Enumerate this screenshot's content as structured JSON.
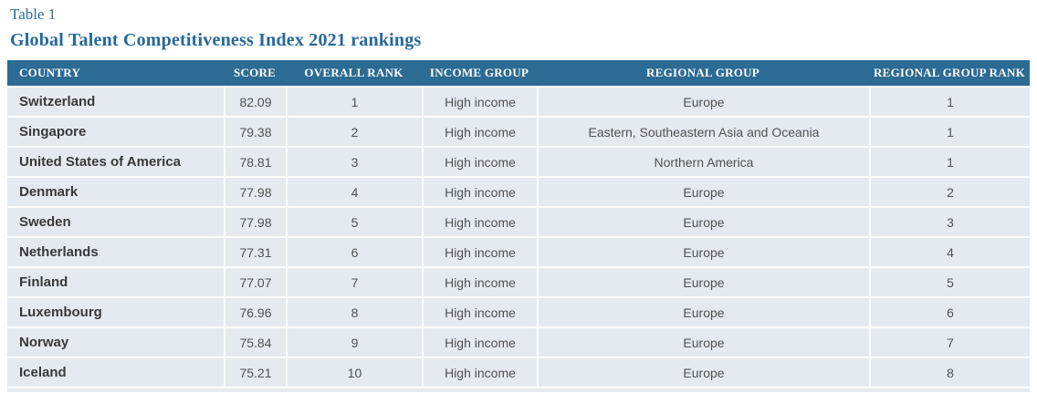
{
  "page": {
    "table_number": "Table 1",
    "title": "Global Talent Competitiveness Index 2021 rankings"
  },
  "table": {
    "columns": [
      "COUNTRY",
      "SCORE",
      "OVERALL RANK",
      "INCOME GROUP",
      "REGIONAL GROUP",
      "REGIONAL GROUP RANK"
    ],
    "rows": [
      {
        "country": "Switzerland",
        "score": "82.09",
        "overall_rank": "1",
        "income_group": "High income",
        "regional_group": "Europe",
        "regional_group_rank": "1"
      },
      {
        "country": "Singapore",
        "score": "79.38",
        "overall_rank": "2",
        "income_group": "High income",
        "regional_group": "Eastern, Southeastern Asia and Oceania",
        "regional_group_rank": "1"
      },
      {
        "country": "United States of America",
        "score": "78.81",
        "overall_rank": "3",
        "income_group": "High income",
        "regional_group": "Northern America",
        "regional_group_rank": "1"
      },
      {
        "country": "Denmark",
        "score": "77.98",
        "overall_rank": "4",
        "income_group": "High income",
        "regional_group": "Europe",
        "regional_group_rank": "2"
      },
      {
        "country": "Sweden",
        "score": "77.98",
        "overall_rank": "5",
        "income_group": "High income",
        "regional_group": "Europe",
        "regional_group_rank": "3"
      },
      {
        "country": "Netherlands",
        "score": "77.31",
        "overall_rank": "6",
        "income_group": "High income",
        "regional_group": "Europe",
        "regional_group_rank": "4"
      },
      {
        "country": "Finland",
        "score": "77.07",
        "overall_rank": "7",
        "income_group": "High income",
        "regional_group": "Europe",
        "regional_group_rank": "5"
      },
      {
        "country": "Luxembourg",
        "score": "76.96",
        "overall_rank": "8",
        "income_group": "High income",
        "regional_group": "Europe",
        "regional_group_rank": "6"
      },
      {
        "country": "Norway",
        "score": "75.84",
        "overall_rank": "9",
        "income_group": "High income",
        "regional_group": "Europe",
        "regional_group_rank": "7"
      },
      {
        "country": "Iceland",
        "score": "75.21",
        "overall_rank": "10",
        "income_group": "High income",
        "regional_group": "Europe",
        "regional_group_rank": "8"
      }
    ]
  },
  "colors": {
    "header_bg": "#2b6b94",
    "header_text": "#ffffff",
    "row_bg": "#e5eaf1",
    "title_accent": "#25699b",
    "table_number_accent": "#2f6f9f",
    "country_text": "#393939",
    "value_text": "#515151"
  }
}
